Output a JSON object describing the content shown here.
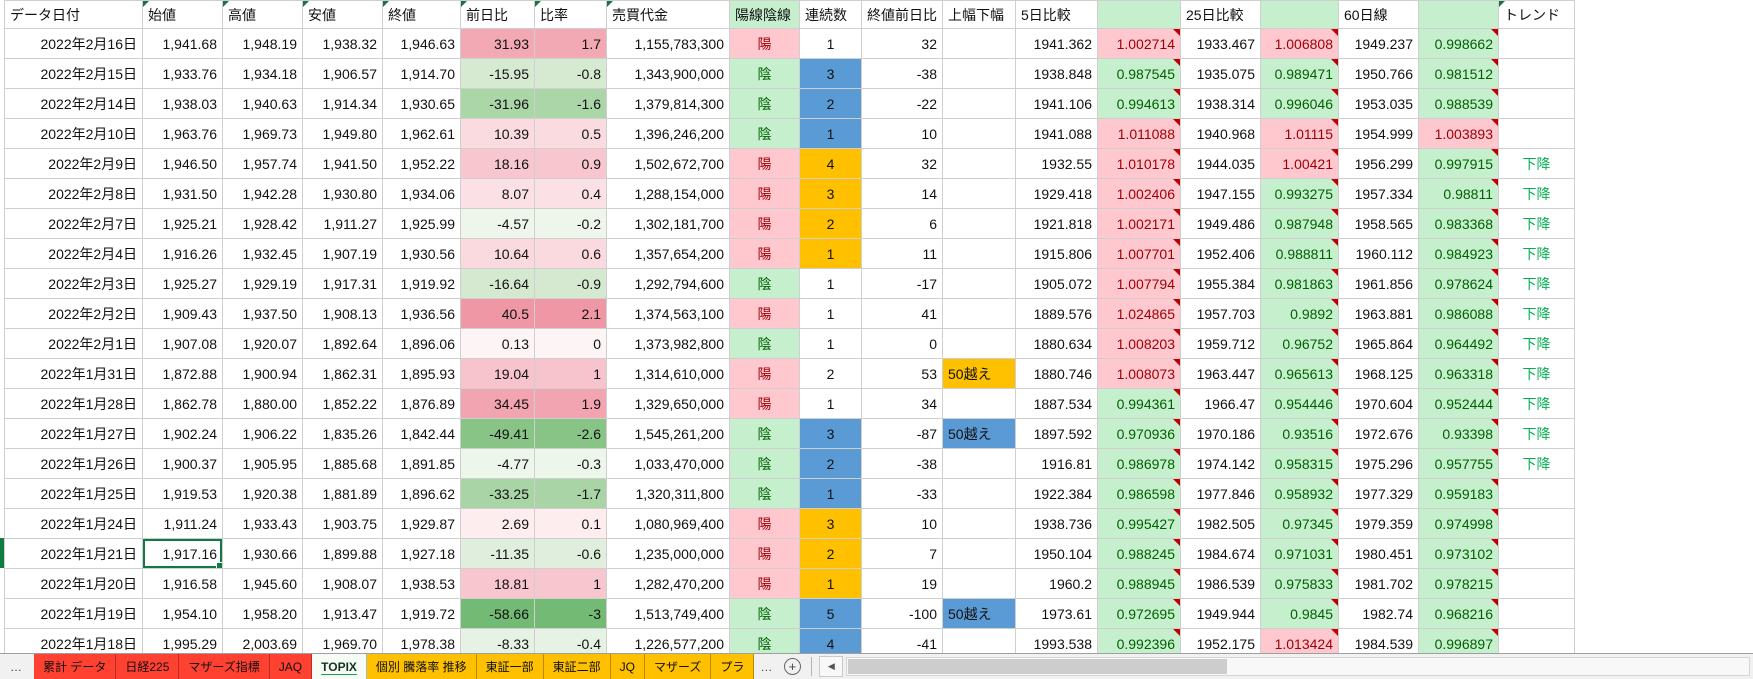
{
  "columns": [
    {
      "id": "date",
      "label": "データ日付",
      "note": false
    },
    {
      "id": "open",
      "label": "始値",
      "note": true
    },
    {
      "id": "high",
      "label": "高値",
      "note": true
    },
    {
      "id": "low",
      "label": "安値",
      "note": true
    },
    {
      "id": "close",
      "label": "終値",
      "note": true
    },
    {
      "id": "change",
      "label": "前日比",
      "note": true
    },
    {
      "id": "ratio",
      "label": "比率",
      "note": true
    },
    {
      "id": "volume",
      "label": "売買代金",
      "note": true
    },
    {
      "id": "candle",
      "label": "陽線陰線",
      "note": false,
      "fill": "green"
    },
    {
      "id": "streak",
      "label": "連続数",
      "note": false
    },
    {
      "id": "close_change",
      "label": "終値前日比",
      "note": false
    },
    {
      "id": "range_note",
      "label": "上幅下幅",
      "note": false
    },
    {
      "id": "d5",
      "label": "5日比較",
      "note": false
    },
    {
      "id": "d5r",
      "label": "",
      "note": false,
      "fill": "green"
    },
    {
      "id": "d25",
      "label": "25日比較",
      "note": false
    },
    {
      "id": "d25r",
      "label": "",
      "note": false,
      "fill": "green"
    },
    {
      "id": "d60",
      "label": "60日線",
      "note": false
    },
    {
      "id": "d60r",
      "label": "",
      "note": false,
      "fill": "green"
    },
    {
      "id": "trend",
      "label": "トレンド",
      "note": true
    }
  ],
  "rows": [
    {
      "date": "2022年2月16日",
      "open": "1,941.68",
      "high": "1,948.19",
      "low": "1,938.32",
      "close": "1,946.63",
      "change": "31.93",
      "ratio": "1.7",
      "cf": "#f2a9b4",
      "volume": "1,155,783,300",
      "candle": "陽",
      "candle_up": true,
      "streak": "1",
      "streak_color": "",
      "close_change": "32",
      "range_note": "",
      "range_color": "",
      "d5": "1941.362",
      "d5r": "1.002714",
      "d5r_up": true,
      "d25": "1933.467",
      "d25r": "1.006808",
      "d25r_up": true,
      "d60": "1949.237",
      "d60r": "0.998662",
      "d60r_up": false,
      "trend": ""
    },
    {
      "date": "2022年2月15日",
      "open": "1,933.76",
      "high": "1,934.18",
      "low": "1,906.57",
      "close": "1,914.70",
      "change": "-15.95",
      "ratio": "-0.8",
      "cf": "#d5ead1",
      "volume": "1,343,900,000",
      "candle": "陰",
      "candle_up": false,
      "streak": "3",
      "streak_color": "down",
      "close_change": "-38",
      "range_note": "",
      "range_color": "",
      "d5": "1938.848",
      "d5r": "0.987545",
      "d5r_up": false,
      "d25": "1935.075",
      "d25r": "0.989471",
      "d25r_up": false,
      "d60": "1950.766",
      "d60r": "0.981512",
      "d60r_up": false,
      "trend": ""
    },
    {
      "date": "2022年2月14日",
      "open": "1,938.03",
      "high": "1,940.63",
      "low": "1,914.34",
      "close": "1,930.65",
      "change": "-31.96",
      "ratio": "-1.6",
      "cf": "#abd6a8",
      "volume": "1,379,814,300",
      "candle": "陰",
      "candle_up": false,
      "streak": "2",
      "streak_color": "down",
      "close_change": "-22",
      "range_note": "",
      "range_color": "",
      "d5": "1941.106",
      "d5r": "0.994613",
      "d5r_up": false,
      "d25": "1938.314",
      "d25r": "0.996046",
      "d25r_up": false,
      "d60": "1953.035",
      "d60r": "0.988539",
      "d60r_up": false,
      "trend": ""
    },
    {
      "date": "2022年2月10日",
      "open": "1,963.76",
      "high": "1,969.73",
      "low": "1,949.80",
      "close": "1,962.61",
      "change": "10.39",
      "ratio": "0.5",
      "cf": "#fadbdf",
      "volume": "1,396,246,200",
      "candle": "陰",
      "candle_up": false,
      "streak": "1",
      "streak_color": "down",
      "close_change": "10",
      "range_note": "",
      "range_color": "",
      "d5": "1941.088",
      "d5r": "1.011088",
      "d5r_up": true,
      "d25": "1940.968",
      "d25r": "1.01115",
      "d25r_up": true,
      "d60": "1954.999",
      "d60r": "1.003893",
      "d60r_up": true,
      "trend": ""
    },
    {
      "date": "2022年2月9日",
      "open": "1,946.50",
      "high": "1,957.74",
      "low": "1,941.50",
      "close": "1,952.22",
      "change": "18.16",
      "ratio": "0.9",
      "cf": "#f7c6cf",
      "volume": "1,502,672,700",
      "candle": "陽",
      "candle_up": true,
      "streak": "4",
      "streak_color": "up",
      "close_change": "32",
      "range_note": "",
      "range_color": "",
      "d5": "1932.55",
      "d5r": "1.010178",
      "d5r_up": true,
      "d25": "1944.035",
      "d25r": "1.00421",
      "d25r_up": true,
      "d60": "1956.299",
      "d60r": "0.997915",
      "d60r_up": false,
      "trend": "下降"
    },
    {
      "date": "2022年2月8日",
      "open": "1,931.50",
      "high": "1,942.28",
      "low": "1,930.80",
      "close": "1,934.06",
      "change": "8.07",
      "ratio": "0.4",
      "cf": "#fbe1e5",
      "volume": "1,288,154,000",
      "candle": "陽",
      "candle_up": true,
      "streak": "3",
      "streak_color": "up",
      "close_change": "14",
      "range_note": "",
      "range_color": "",
      "d5": "1929.418",
      "d5r": "1.002406",
      "d5r_up": true,
      "d25": "1947.155",
      "d25r": "0.993275",
      "d25r_up": false,
      "d60": "1957.334",
      "d60r": "0.98811",
      "d60r_up": false,
      "trend": "下降"
    },
    {
      "date": "2022年2月7日",
      "open": "1,925.21",
      "high": "1,928.42",
      "low": "1,911.27",
      "close": "1,925.99",
      "change": "-4.57",
      "ratio": "-0.2",
      "cf": "#eef6ec",
      "volume": "1,302,181,700",
      "candle": "陽",
      "candle_up": true,
      "streak": "2",
      "streak_color": "up",
      "close_change": "6",
      "range_note": "",
      "range_color": "",
      "d5": "1921.818",
      "d5r": "1.002171",
      "d5r_up": true,
      "d25": "1949.486",
      "d25r": "0.987948",
      "d25r_up": false,
      "d60": "1958.565",
      "d60r": "0.983368",
      "d60r_up": false,
      "trend": "下降"
    },
    {
      "date": "2022年2月4日",
      "open": "1,916.26",
      "high": "1,932.45",
      "low": "1,907.19",
      "close": "1,930.56",
      "change": "10.64",
      "ratio": "0.6",
      "cf": "#fadade",
      "volume": "1,357,654,200",
      "candle": "陽",
      "candle_up": true,
      "streak": "1",
      "streak_color": "up",
      "close_change": "11",
      "range_note": "",
      "range_color": "",
      "d5": "1915.806",
      "d5r": "1.007701",
      "d5r_up": true,
      "d25": "1952.406",
      "d25r": "0.988811",
      "d25r_up": false,
      "d60": "1960.112",
      "d60r": "0.984923",
      "d60r_up": false,
      "trend": "下降"
    },
    {
      "date": "2022年2月3日",
      "open": "1,925.27",
      "high": "1,929.19",
      "low": "1,917.31",
      "close": "1,919.92",
      "change": "-16.64",
      "ratio": "-0.9",
      "cf": "#d4e9d0",
      "volume": "1,292,794,600",
      "candle": "陰",
      "candle_up": false,
      "streak": "1",
      "streak_color": "",
      "close_change": "-17",
      "range_note": "",
      "range_color": "",
      "d5": "1905.072",
      "d5r": "1.007794",
      "d5r_up": true,
      "d25": "1955.384",
      "d25r": "0.981863",
      "d25r_up": false,
      "d60": "1961.856",
      "d60r": "0.978624",
      "d60r_up": false,
      "trend": "下降"
    },
    {
      "date": "2022年2月2日",
      "open": "1,909.43",
      "high": "1,937.50",
      "low": "1,908.13",
      "close": "1,936.56",
      "change": "40.5",
      "ratio": "2.1",
      "cf": "#ef97a5",
      "volume": "1,374,563,100",
      "candle": "陽",
      "candle_up": true,
      "streak": "1",
      "streak_color": "",
      "close_change": "41",
      "range_note": "",
      "range_color": "",
      "d5": "1889.576",
      "d5r": "1.024865",
      "d5r_up": true,
      "d25": "1957.703",
      "d25r": "0.9892",
      "d25r_up": false,
      "d60": "1963.881",
      "d60r": "0.986088",
      "d60r_up": false,
      "trend": "下降"
    },
    {
      "date": "2022年2月1日",
      "open": "1,907.08",
      "high": "1,920.07",
      "low": "1,892.64",
      "close": "1,896.06",
      "change": "0.13",
      "ratio": "0",
      "cf": "#fdf4f5",
      "volume": "1,373,982,800",
      "candle": "陰",
      "candle_up": false,
      "streak": "1",
      "streak_color": "",
      "close_change": "0",
      "range_note": "",
      "range_color": "",
      "d5": "1880.634",
      "d5r": "1.008203",
      "d5r_up": true,
      "d25": "1959.712",
      "d25r": "0.96752",
      "d25r_up": false,
      "d60": "1965.864",
      "d60r": "0.964492",
      "d60r_up": false,
      "trend": "下降"
    },
    {
      "date": "2022年1月31日",
      "open": "1,872.88",
      "high": "1,900.94",
      "low": "1,862.31",
      "close": "1,895.93",
      "change": "19.04",
      "ratio": "1",
      "cf": "#f7c4cd",
      "volume": "1,314,610,000",
      "candle": "陽",
      "candle_up": true,
      "streak": "2",
      "streak_color": "",
      "close_change": "53",
      "range_note": "50越え",
      "range_color": "up",
      "d5": "1880.746",
      "d5r": "1.008073",
      "d5r_up": true,
      "d25": "1963.447",
      "d25r": "0.965613",
      "d25r_up": false,
      "d60": "1968.125",
      "d60r": "0.963318",
      "d60r_up": false,
      "trend": "下降"
    },
    {
      "date": "2022年1月28日",
      "open": "1,862.78",
      "high": "1,880.00",
      "low": "1,852.22",
      "close": "1,876.89",
      "change": "34.45",
      "ratio": "1.9",
      "cf": "#f3a4b1",
      "volume": "1,329,650,000",
      "candle": "陽",
      "candle_up": true,
      "streak": "1",
      "streak_color": "",
      "close_change": "34",
      "range_note": "",
      "range_color": "",
      "d5": "1887.534",
      "d5r": "0.994361",
      "d5r_up": false,
      "d25": "1966.47",
      "d25r": "0.954446",
      "d25r_up": false,
      "d60": "1970.604",
      "d60r": "0.952444",
      "d60r_up": false,
      "trend": "下降"
    },
    {
      "date": "2022年1月27日",
      "open": "1,902.24",
      "high": "1,906.22",
      "low": "1,835.26",
      "close": "1,842.44",
      "change": "-49.41",
      "ratio": "-2.6",
      "cf": "#88c485",
      "volume": "1,545,261,200",
      "candle": "陰",
      "candle_up": false,
      "streak": "3",
      "streak_color": "down",
      "close_change": "-87",
      "range_note": "50越え",
      "range_color": "down",
      "d5": "1897.592",
      "d5r": "0.970936",
      "d5r_up": false,
      "d25": "1970.186",
      "d25r": "0.93516",
      "d25r_up": false,
      "d60": "1972.676",
      "d60r": "0.93398",
      "d60r_up": false,
      "trend": "下降"
    },
    {
      "date": "2022年1月26日",
      "open": "1,900.37",
      "high": "1,905.95",
      "low": "1,885.68",
      "close": "1,891.85",
      "change": "-4.77",
      "ratio": "-0.3",
      "cf": "#edf6eb",
      "volume": "1,033,470,000",
      "candle": "陰",
      "candle_up": false,
      "streak": "2",
      "streak_color": "down",
      "close_change": "-38",
      "range_note": "",
      "range_color": "",
      "d5": "1916.81",
      "d5r": "0.986978",
      "d5r_up": false,
      "d25": "1974.142",
      "d25r": "0.958315",
      "d25r_up": false,
      "d60": "1975.296",
      "d60r": "0.957755",
      "d60r_up": false,
      "trend": "下降"
    },
    {
      "date": "2022年1月25日",
      "open": "1,919.53",
      "high": "1,920.38",
      "low": "1,881.89",
      "close": "1,896.62",
      "change": "-33.25",
      "ratio": "-1.7",
      "cf": "#a9d5a6",
      "volume": "1,320,311,800",
      "candle": "陰",
      "candle_up": false,
      "streak": "1",
      "streak_color": "down",
      "close_change": "-33",
      "range_note": "",
      "range_color": "",
      "d5": "1922.384",
      "d5r": "0.986598",
      "d5r_up": false,
      "d25": "1977.846",
      "d25r": "0.958932",
      "d25r_up": false,
      "d60": "1977.329",
      "d60r": "0.959183",
      "d60r_up": false,
      "trend": ""
    },
    {
      "date": "2022年1月24日",
      "open": "1,911.24",
      "high": "1,933.43",
      "low": "1,903.75",
      "close": "1,929.87",
      "change": "2.69",
      "ratio": "0.1",
      "cf": "#fdedef",
      "volume": "1,080,969,400",
      "candle": "陽",
      "candle_up": true,
      "streak": "3",
      "streak_color": "up",
      "close_change": "10",
      "range_note": "",
      "range_color": "",
      "d5": "1938.736",
      "d5r": "0.995427",
      "d5r_up": false,
      "d25": "1982.505",
      "d25r": "0.97345",
      "d25r_up": false,
      "d60": "1979.359",
      "d60r": "0.974998",
      "d60r_up": false,
      "trend": ""
    },
    {
      "date": "2022年1月21日",
      "open": "1,917.16",
      "high": "1,930.66",
      "low": "1,899.88",
      "close": "1,927.18",
      "change": "-11.35",
      "ratio": "-0.6",
      "cf": "#e0efdd",
      "volume": "1,235,000,000",
      "candle": "陽",
      "candle_up": true,
      "streak": "2",
      "streak_color": "up",
      "close_change": "7",
      "range_note": "",
      "range_color": "",
      "d5": "1950.104",
      "d5r": "0.988245",
      "d5r_up": false,
      "d25": "1984.674",
      "d25r": "0.971031",
      "d25r_up": false,
      "d60": "1980.451",
      "d60r": "0.973102",
      "d60r_up": false,
      "trend": ""
    },
    {
      "date": "2022年1月20日",
      "open": "1,916.58",
      "high": "1,945.60",
      "low": "1,908.07",
      "close": "1,938.53",
      "change": "18.81",
      "ratio": "1",
      "cf": "#f7c6cf",
      "volume": "1,282,470,200",
      "candle": "陽",
      "candle_up": true,
      "streak": "1",
      "streak_color": "up",
      "close_change": "19",
      "range_note": "",
      "range_color": "",
      "d5": "1960.2",
      "d5r": "0.988945",
      "d5r_up": false,
      "d25": "1986.539",
      "d25r": "0.975833",
      "d25r_up": false,
      "d60": "1981.702",
      "d60r": "0.978215",
      "d60r_up": false,
      "trend": ""
    },
    {
      "date": "2022年1月19日",
      "open": "1,954.10",
      "high": "1,958.20",
      "low": "1,913.47",
      "close": "1,919.72",
      "change": "-58.66",
      "ratio": "-3",
      "cf": "#73ba74",
      "volume": "1,513,749,400",
      "candle": "陰",
      "candle_up": false,
      "streak": "5",
      "streak_color": "down",
      "close_change": "-100",
      "range_note": "50越え",
      "range_color": "down",
      "d5": "1973.61",
      "d5r": "0.972695",
      "d5r_up": false,
      "d25": "1949.944",
      "d25r": "0.9845",
      "d25r_up": false,
      "d60": "1982.74",
      "d60r": "0.968216",
      "d60r_up": false,
      "trend": ""
    },
    {
      "date": "2022年1月18日",
      "open": "1,995.29",
      "high": "2,003.69",
      "low": "1,969.70",
      "close": "1,978.38",
      "change": "-8.33",
      "ratio": "-0.4",
      "cf": "#e6f2e3",
      "volume": "1,226,577,200",
      "candle": "陰",
      "candle_up": false,
      "streak": "4",
      "streak_color": "down",
      "close_change": "-41",
      "range_note": "",
      "range_color": "",
      "d5": "1993.538",
      "d5r": "0.992396",
      "d5r_up": false,
      "d25": "1952.175",
      "d25r": "1.013424",
      "d25r_up": true,
      "d60": "1984.539",
      "d60r": "0.996897",
      "d60r_up": false,
      "trend": ""
    }
  ],
  "colors": {
    "up_fill": "#ffc7ce",
    "up_text": "#9c0006",
    "down_fill": "#c6efce",
    "down_text": "#006100",
    "streak_up": "#ffc000",
    "streak_down": "#5b9bd5",
    "trend_text": "#00b050",
    "selection": "#0f7b40",
    "tab_red": "#ff4131",
    "tab_yellow": "#ffc000"
  },
  "ui": {
    "selected_row_index": 17,
    "selected_column": "open"
  },
  "sheet_bar": {
    "more_label": "…",
    "overflow_label": "…",
    "add_label": "+",
    "scroll_left_label": "◀",
    "tabs": [
      {
        "label": "累計 データ",
        "variant": "red",
        "active": false
      },
      {
        "label": "日経225",
        "variant": "red",
        "active": false
      },
      {
        "label": "マザーズ指標",
        "variant": "red",
        "active": false
      },
      {
        "label": "JAQ",
        "variant": "red",
        "active": false
      },
      {
        "label": "TOPIX",
        "variant": "active",
        "active": true
      },
      {
        "label": "個別 騰落率 推移",
        "variant": "yellow",
        "active": false
      },
      {
        "label": "東証一部",
        "variant": "yellow",
        "active": false
      },
      {
        "label": "東証二部",
        "variant": "yellow",
        "active": false
      },
      {
        "label": "JQ",
        "variant": "yellow",
        "active": false
      },
      {
        "label": "マザーズ",
        "variant": "yellow",
        "active": false
      },
      {
        "label": "プラ",
        "variant": "yellow",
        "active": false
      }
    ]
  }
}
